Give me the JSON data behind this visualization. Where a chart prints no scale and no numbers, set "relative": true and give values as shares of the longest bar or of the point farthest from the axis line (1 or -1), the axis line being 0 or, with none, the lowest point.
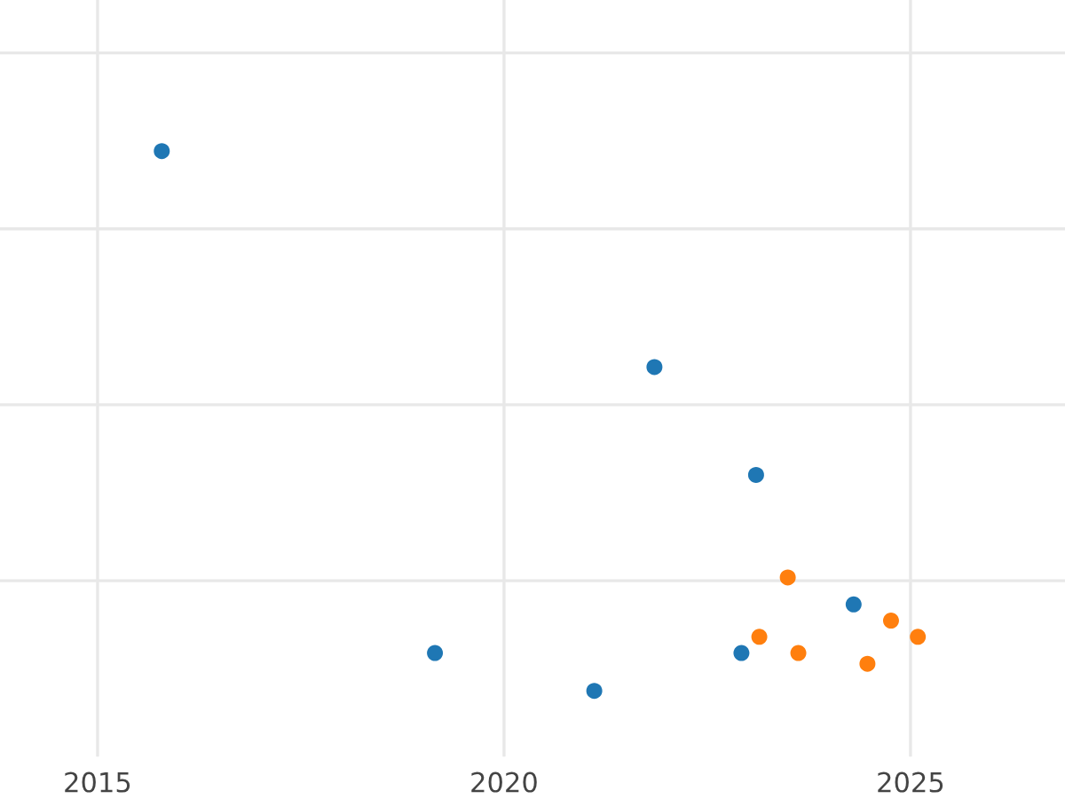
{
  "chart_data": {
    "type": "scatter",
    "relative": true,
    "xlim": [
      2013.8,
      2026.9
    ],
    "xticks": [
      2015,
      2020,
      2025
    ],
    "series": [
      {
        "color": "#1f77b4",
        "x": [
          2015.79,
          2021.85,
          2023.1,
          2024.3,
          2019.15,
          2022.92,
          2021.11
        ],
        "values": [
          1,
          0.6,
          0.4,
          0.16,
          0.07,
          0.07,
          0
        ]
      },
      {
        "color": "#ff7f0e",
        "x": [
          2023.49,
          2023.14,
          2023.62,
          2024.76,
          2025.09,
          2024.47
        ],
        "values": [
          0.21,
          0.1,
          0.07,
          0.13,
          0.1,
          0.05
        ]
      }
    ],
    "marker": "circle",
    "grid": true,
    "tick_labels": "x"
  }
}
